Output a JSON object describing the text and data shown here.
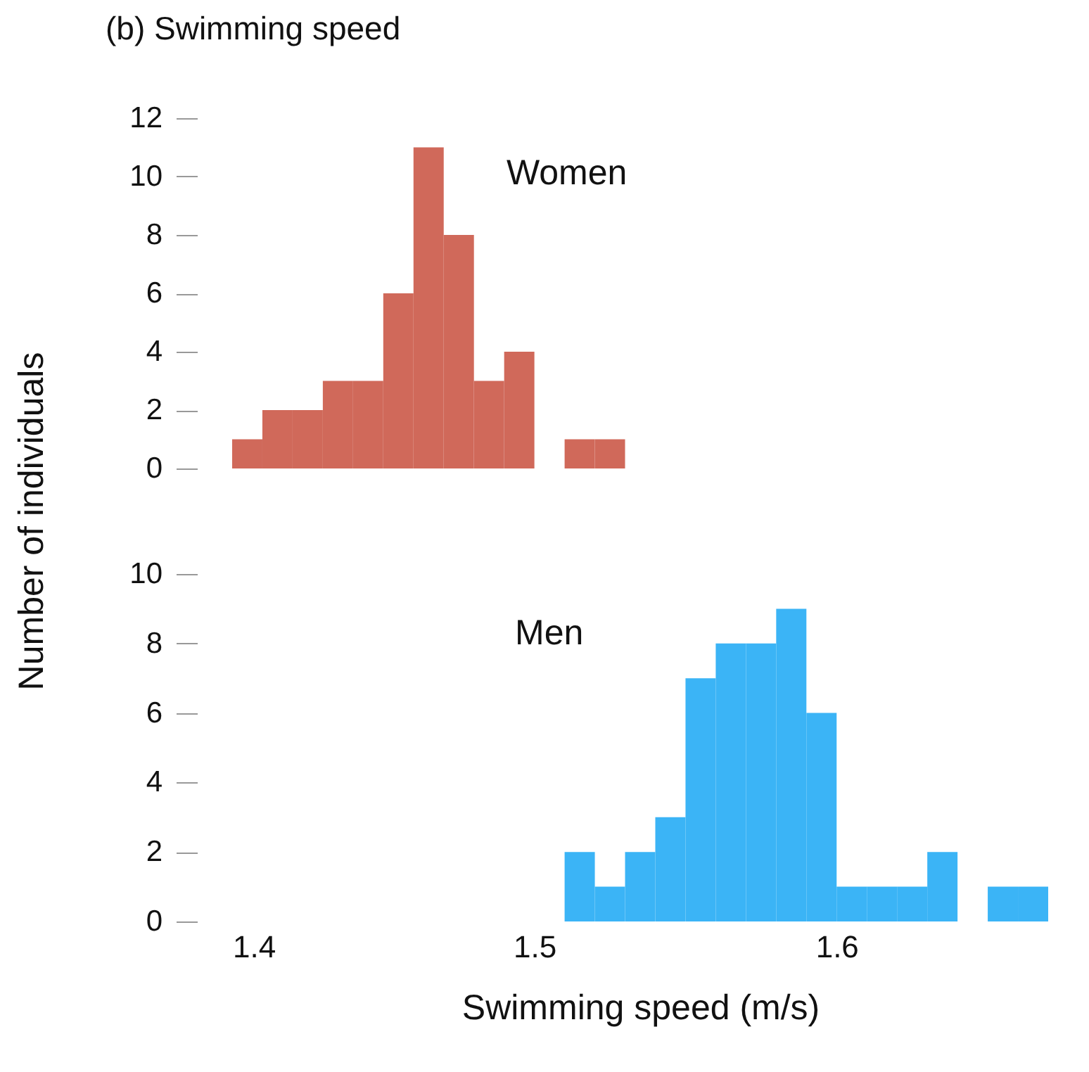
{
  "chart_data": [
    {
      "type": "histogram",
      "title": "(b) Swimming speed",
      "ylabel": "Number of individuals",
      "bins": [
        1.4,
        1.41,
        1.42,
        1.43,
        1.44,
        1.45,
        1.46,
        1.47,
        1.48,
        1.49,
        1.5,
        1.51,
        1.52,
        1.53
      ],
      "series": [
        {
          "name": "Women",
          "color": "#d0695a",
          "values": [
            1,
            2,
            2,
            3,
            3,
            6,
            11,
            8,
            3,
            4,
            0,
            1,
            1
          ]
        }
      ],
      "xlim": [
        1.4,
        1.67
      ],
      "ylim": [
        0,
        12
      ],
      "yticks": [
        0,
        2,
        4,
        6,
        8,
        10,
        12
      ],
      "tick_labels": "y",
      "grid": false
    },
    {
      "type": "histogram",
      "xlabel": "Swimming speed (m/s)",
      "bins": [
        1.51,
        1.52,
        1.53,
        1.54,
        1.55,
        1.56,
        1.57,
        1.58,
        1.59,
        1.6,
        1.61,
        1.62,
        1.63,
        1.64,
        1.65,
        1.66,
        1.67
      ],
      "series": [
        {
          "name": "Men",
          "color": "#3bb4f6",
          "values": [
            2,
            1,
            2,
            3,
            7,
            8,
            8,
            9,
            6,
            1,
            1,
            1,
            2,
            0,
            1,
            1
          ]
        }
      ],
      "xlim": [
        1.4,
        1.67
      ],
      "ylim": [
        0,
        10
      ],
      "yticks": [
        0,
        2,
        4,
        6,
        8,
        10
      ],
      "xticks": [
        1.4,
        1.5,
        1.6
      ],
      "grid": false
    }
  ]
}
